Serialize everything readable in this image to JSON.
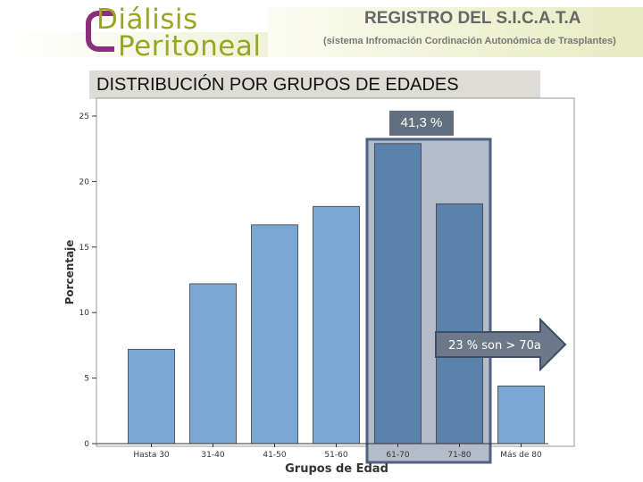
{
  "header": {
    "logo_line1": "Diálisis",
    "logo_line2": "Peritoneal",
    "registry_title": "REGISTRO DEL S.I.C.A.T.A",
    "registry_subtitle": "(sistema Infromación Cordinación Autonómica de Trasplantes)"
  },
  "chart_title": "DISTRIBUCIÓN POR GRUPOS DE EDADES",
  "annotations": {
    "highlight_pct": "41,3 %",
    "arrow_text": "23 % son > 70a"
  },
  "colors": {
    "bar": "#79a8d5",
    "bar_highlight": "#5b82ac",
    "highlight_fill": "#b3bcc8",
    "highlight_border": "#4e6180",
    "arrow_fill": "#6d7989",
    "arrow_border": "#3c4e6c"
  },
  "chart_data": {
    "type": "bar",
    "categories": [
      "Hasta 30",
      "31-40",
      "41-50",
      "51-60",
      "61-70",
      "71-80",
      "Más de 80"
    ],
    "values": [
      7.2,
      12.2,
      16.7,
      18.1,
      22.9,
      18.3,
      4.4
    ],
    "xlabel": "Grupos de Edad",
    "ylabel": "Porcentaje",
    "ylim": [
      0,
      25
    ],
    "yticks": [
      0,
      5,
      10,
      15,
      20,
      25
    ],
    "highlighted_categories": [
      "61-70",
      "71-80"
    ],
    "grid": false
  }
}
